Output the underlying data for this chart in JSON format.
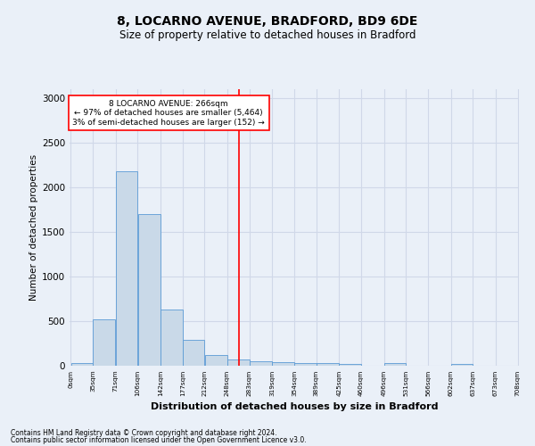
{
  "title": "8, LOCARNO AVENUE, BRADFORD, BD9 6DE",
  "subtitle": "Size of property relative to detached houses in Bradford",
  "xlabel": "Distribution of detached houses by size in Bradford",
  "ylabel": "Number of detached properties",
  "bar_color": "#c9d9e8",
  "bar_edge_color": "#5b9bd5",
  "grid_color": "#d0d8e8",
  "annotation_line_color": "red",
  "annotation_property": "8 LOCARNO AVENUE: 266sqm",
  "annotation_smaller": "← 97% of detached houses are smaller (5,464)",
  "annotation_larger": "3% of semi-detached houses are larger (152) →",
  "annotation_box_color": "white",
  "annotation_box_edge_color": "red",
  "property_size_sqm": 266,
  "bin_edges": [
    0,
    35,
    71,
    106,
    142,
    177,
    212,
    248,
    283,
    319,
    354,
    389,
    425,
    460,
    496,
    531,
    566,
    602,
    637,
    673,
    708
  ],
  "bar_heights": [
    35,
    520,
    2180,
    1700,
    635,
    290,
    120,
    75,
    50,
    40,
    35,
    30,
    25,
    0,
    30,
    0,
    0,
    20,
    0,
    0
  ],
  "ylim": [
    0,
    3100
  ],
  "yticks": [
    0,
    500,
    1000,
    1500,
    2000,
    2500,
    3000
  ],
  "footnote1": "Contains HM Land Registry data © Crown copyright and database right 2024.",
  "footnote2": "Contains public sector information licensed under the Open Government Licence v3.0.",
  "background_color": "#eaf0f8",
  "title_fontsize": 10,
  "subtitle_fontsize": 8.5
}
